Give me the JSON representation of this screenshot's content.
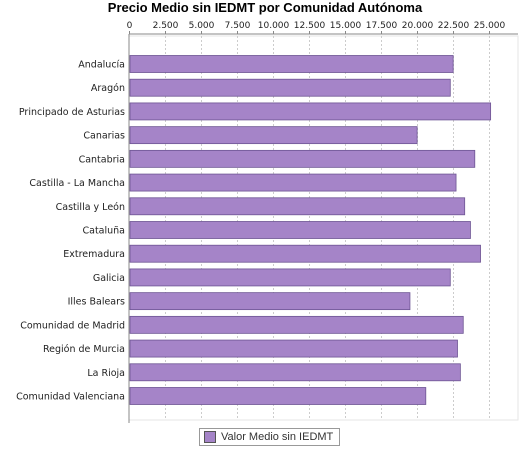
{
  "chart_data": {
    "type": "bar",
    "orientation": "horizontal",
    "title": "Precio Medio sin IEDMT por Comunidad Autónoma",
    "xlabel": "",
    "ylabel": "",
    "xlim": [
      0,
      27000
    ],
    "xticks": [
      0,
      2500,
      5000,
      7500,
      10000,
      12500,
      15000,
      17500,
      20000,
      22500,
      25000
    ],
    "xtick_labels": [
      "0",
      "2.500",
      "5.000",
      "7.500",
      "10.000",
      "12.500",
      "15.000",
      "17.500",
      "20.000",
      "22.500",
      "25.000"
    ],
    "axis_position": "top",
    "grid": "vertical dashed",
    "categories": [
      "Andalucía",
      "Aragón",
      "Principado de Asturias",
      "Canarias",
      "Cantabria",
      "Castilla - La Mancha",
      "Castilla y León",
      "Cataluña",
      "Extremadura",
      "Galicia",
      "Illes Balears",
      "Comunidad de Madrid",
      "Región de Murcia",
      "La Rioja",
      "Comunidad Valenciana"
    ],
    "series": [
      {
        "name": "Valor Medio sin IEDMT",
        "color": "#a584c8",
        "values": [
          22500,
          22300,
          25100,
          20000,
          24000,
          22700,
          23300,
          23700,
          24400,
          22300,
          19500,
          23200,
          22800,
          23000,
          20600
        ]
      }
    ],
    "legend_position": "bottom-center"
  }
}
